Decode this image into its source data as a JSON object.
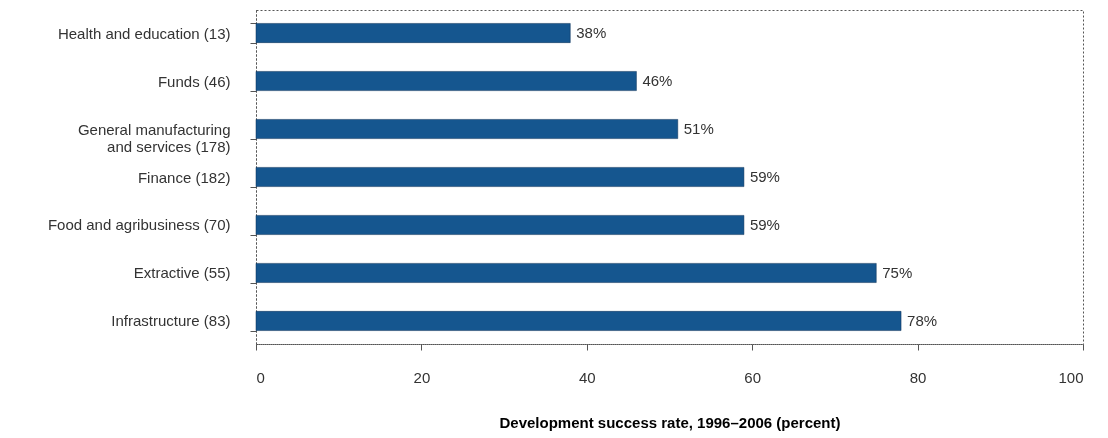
{
  "chart_data": {
    "type": "bar",
    "orientation": "horizontal",
    "xlabel": "Development success rate, 1996–2006 (percent)",
    "categories": [
      "Health and education (13)",
      "Funds (46)",
      "General manufacturing and services (178)",
      "Finance (182)",
      "Food and agribusiness (70)",
      "Extractive (55)",
      "Infrastructure (83)"
    ],
    "values": [
      38,
      46,
      51,
      59,
      59,
      75,
      78
    ],
    "value_labels": [
      "38%",
      "46%",
      "51%",
      "59%",
      "59%",
      "75%",
      "78%"
    ],
    "color": "#15568f",
    "xlim": [
      0,
      100
    ],
    "xticks": [
      0,
      20,
      40,
      60,
      80,
      100
    ]
  }
}
